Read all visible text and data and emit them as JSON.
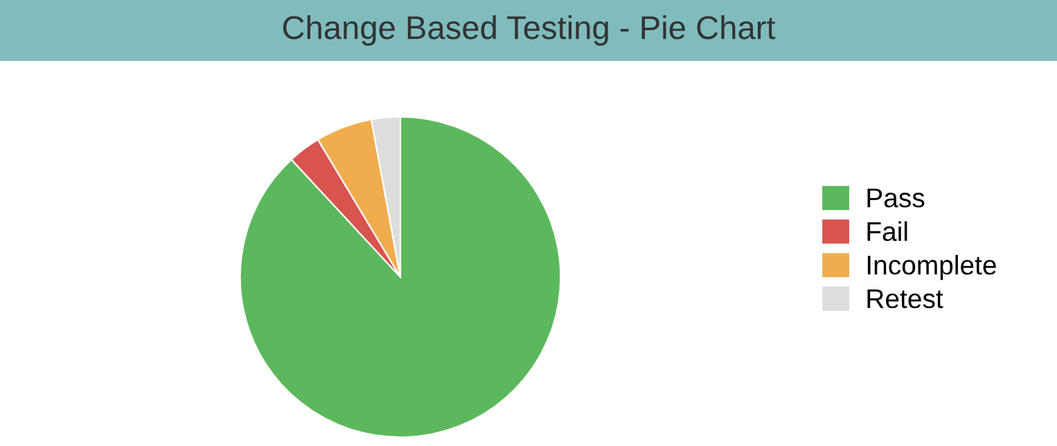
{
  "chart_data": {
    "type": "pie",
    "title": "Change Based Testing - Pie Chart",
    "categories": [
      "Pass",
      "Fail",
      "Incomplete",
      "Retest"
    ],
    "values": [
      88.1,
      3.3,
      5.7,
      2.9
    ],
    "colors": [
      "#5cb85c",
      "#d9534f",
      "#f0ad4e",
      "#dddddd"
    ],
    "legend": "right"
  }
}
